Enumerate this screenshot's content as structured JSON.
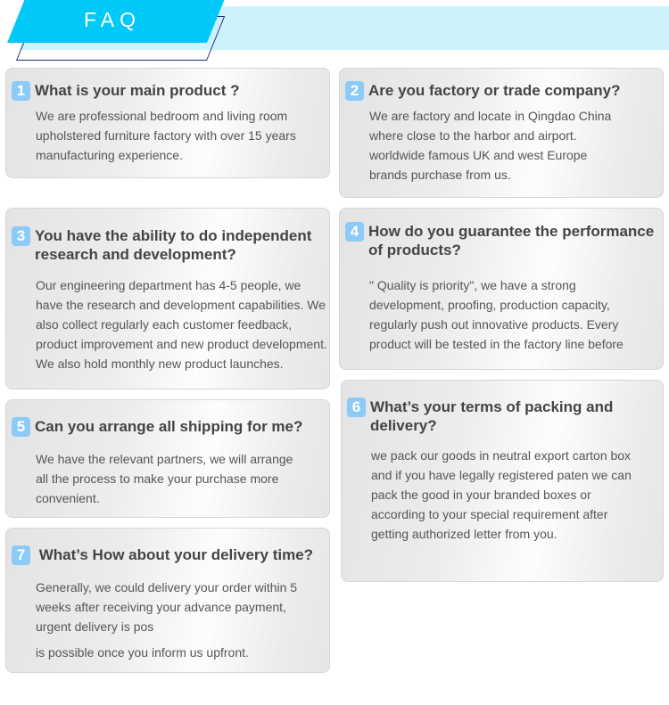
{
  "header": {
    "title": "FAQ"
  },
  "colors": {
    "banner": "#00c8f8",
    "banner_light": "#ccf3fb",
    "badge": "#8ccaf8"
  },
  "faqs": [
    {
      "num": "1",
      "title": [
        "What is your main product ?"
      ],
      "body": [
        "We are professional bedroom and living room",
        "upholstered furniture factory with over 15 years",
        "manufacturing experience."
      ]
    },
    {
      "num": "2",
      "title": [
        "Are you factory or trade company?"
      ],
      "body": [
        "We are factory and locate in Qingdao China",
        "where close to the harbor and airport.",
        "worldwide famous UK and west Europe",
        "brands purchase from us."
      ]
    },
    {
      "num": "3",
      "title": [
        "You have the ability to do independent",
        "research and development?"
      ],
      "body": [
        "Our engineering department has 4-5 people, we",
        "have the research and development capabilities. We",
        "also collect regularly each customer feedback,",
        "product improvement and new product development.",
        "We also hold monthly new product launches."
      ]
    },
    {
      "num": "4",
      "title": [
        "How do you guarantee the performance",
        "of products?"
      ],
      "body": [
        "\" Quality is priority\", we have a strong",
        "development, proofing, production capacity,",
        "regularly push out innovative products. Every",
        "product will be tested in the factory line before"
      ]
    },
    {
      "num": "5",
      "title": [
        "Can you arrange all shipping for me?"
      ],
      "body": [
        "We have the relevant partners, we will arrange",
        "all the process to make your purchase more",
        "convenient."
      ]
    },
    {
      "num": "6",
      "title": [
        "What’s your terms of packing and",
        "delivery?"
      ],
      "body": [
        "we pack our goods in neutral export carton box",
        "and if you have legally registered paten we can",
        "pack the good in your branded boxes or",
        "according to your special requirement after",
        "getting authorized letter from you."
      ]
    },
    {
      "num": "7",
      "title": [
        " What’s How about your delivery time?"
      ],
      "body": [
        "Generally, we could delivery your order within 5",
        "weeks after receiving your advance payment,",
        "urgent delivery is pos"
      ],
      "body_extra": "is possible once you inform us upfront."
    }
  ]
}
